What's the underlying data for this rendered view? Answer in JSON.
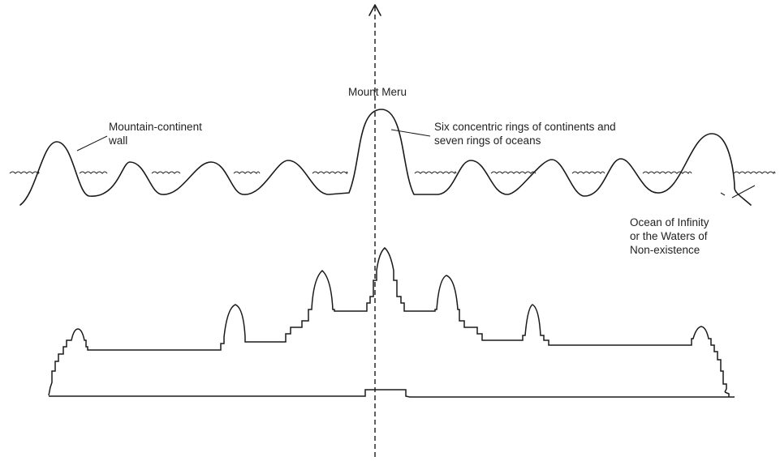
{
  "labels": {
    "mount_meru": "Mount Meru",
    "mountain_wall_line1": "Mountain-continent",
    "mountain_wall_line2": "wall",
    "rings_line1": "Six concentric rings of continents and",
    "rings_line2": "seven rings of oceans",
    "ocean_line1": "Ocean of Infinity",
    "ocean_line2": "or the Waters of",
    "ocean_line3": "Non-existence"
  }
}
